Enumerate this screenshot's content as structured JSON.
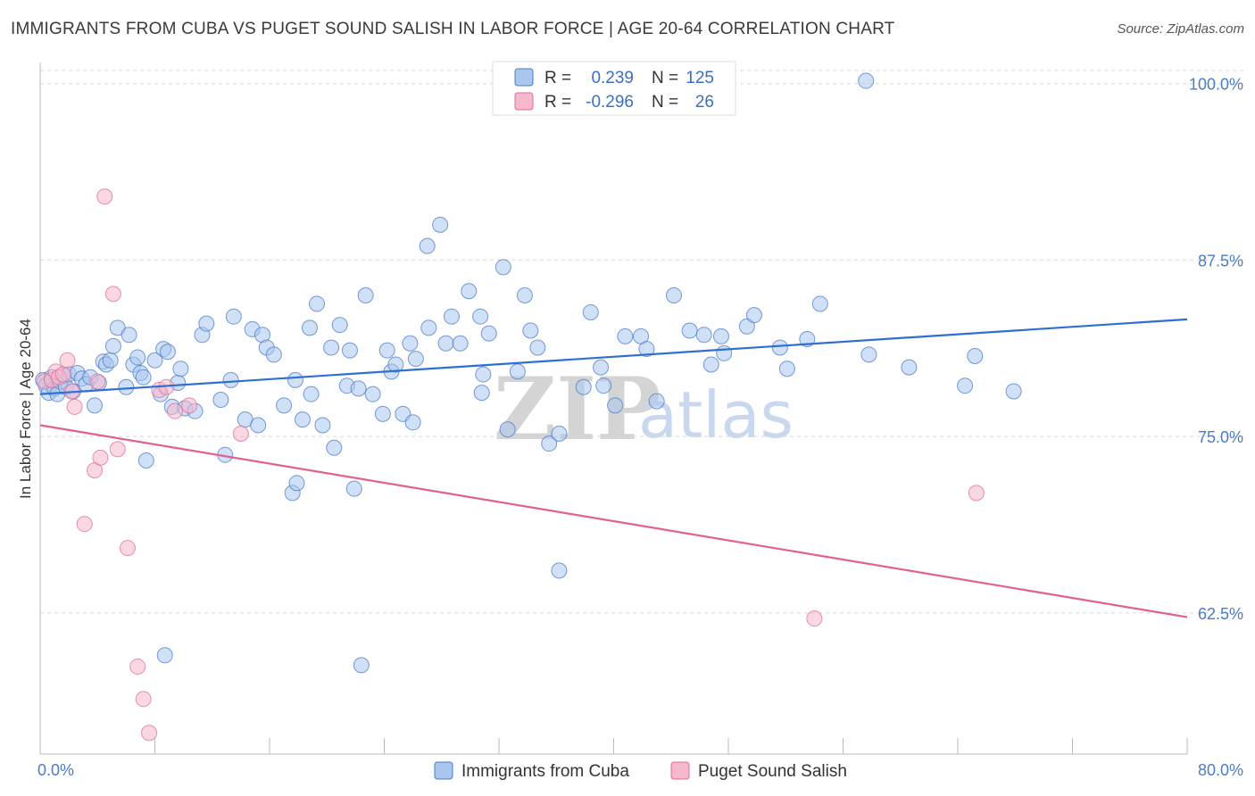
{
  "title": "IMMIGRANTS FROM CUBA VS PUGET SOUND SALISH IN LABOR FORCE | AGE 20-64 CORRELATION CHART",
  "source": "Source: ZipAtlas.com",
  "watermark": {
    "zip": "ZIP",
    "atlas": "atlas"
  },
  "colors": {
    "blue": "#4a7cc7",
    "blue_fill": "#a9c6ee",
    "blue_line": "#2f6fd1",
    "pink": "#e06c97",
    "pink_fill": "#f6b8cc",
    "pink_line": "#e0608f",
    "grid": "#d8d8d8",
    "axis": "#bbbbbb"
  },
  "legend": {
    "rows": [
      {
        "r_label": "R =",
        "r_value": "0.239",
        "n_label": "N =",
        "n_value": "125"
      },
      {
        "r_label": "R =",
        "r_value": "-0.296",
        "n_label": "N =",
        "n_value": "26"
      }
    ]
  },
  "bottom_legend": [
    "Immigrants from Cuba",
    "Puget Sound Salish"
  ],
  "chart_data": {
    "type": "scatter",
    "ylabel": "In Labor Force | Age 20-64",
    "xlim": [
      0,
      80
    ],
    "ylim": [
      52.5,
      101.5
    ],
    "x_tick_labels": [
      "0.0%",
      "80.0%"
    ],
    "y_ticks": [
      100.0,
      87.5,
      75.0,
      62.5
    ],
    "y_tick_labels": [
      "100.0%",
      "87.5%",
      "75.0%",
      "62.5%"
    ],
    "grid": "horizontal dashed",
    "legend_position": "top-center",
    "series": [
      {
        "name": "Immigrants from Cuba",
        "color": "#4a7cc7",
        "trend": {
          "x0": 0,
          "y0": 78.0,
          "x1": 80,
          "y1": 83.3
        },
        "points": [
          [
            0.2,
            79.0
          ],
          [
            0.4,
            78.6
          ],
          [
            0.6,
            78.1
          ],
          [
            0.8,
            79.2
          ],
          [
            1.0,
            78.4
          ],
          [
            1.2,
            78.0
          ],
          [
            1.4,
            78.9
          ],
          [
            1.7,
            79.3
          ],
          [
            1.8,
            78.5
          ],
          [
            2.0,
            79.4
          ],
          [
            2.3,
            78.2
          ],
          [
            2.6,
            79.5
          ],
          [
            2.9,
            79.1
          ],
          [
            3.2,
            78.7
          ],
          [
            3.5,
            79.2
          ],
          [
            3.8,
            77.2
          ],
          [
            4.1,
            78.8
          ],
          [
            4.4,
            80.3
          ],
          [
            4.6,
            80.1
          ],
          [
            4.9,
            80.4
          ],
          [
            5.1,
            81.4
          ],
          [
            5.4,
            82.7
          ],
          [
            6.0,
            78.5
          ],
          [
            6.2,
            82.2
          ],
          [
            6.5,
            80.1
          ],
          [
            6.8,
            80.6
          ],
          [
            7.0,
            79.5
          ],
          [
            7.2,
            79.2
          ],
          [
            7.4,
            73.3
          ],
          [
            8.0,
            80.4
          ],
          [
            8.4,
            78.0
          ],
          [
            8.6,
            81.2
          ],
          [
            8.9,
            81.0
          ],
          [
            9.2,
            77.1
          ],
          [
            9.6,
            78.8
          ],
          [
            9.8,
            79.8
          ],
          [
            10.1,
            77.0
          ],
          [
            10.8,
            76.8
          ],
          [
            11.3,
            82.2
          ],
          [
            11.6,
            83.0
          ],
          [
            12.6,
            77.6
          ],
          [
            12.9,
            73.7
          ],
          [
            13.3,
            79.0
          ],
          [
            13.5,
            83.5
          ],
          [
            14.3,
            76.2
          ],
          [
            14.8,
            82.6
          ],
          [
            15.2,
            75.8
          ],
          [
            15.5,
            82.2
          ],
          [
            15.8,
            81.3
          ],
          [
            16.3,
            80.8
          ],
          [
            17.0,
            77.2
          ],
          [
            17.6,
            71.0
          ],
          [
            17.9,
            71.7
          ],
          [
            17.8,
            79.0
          ],
          [
            18.3,
            76.2
          ],
          [
            18.8,
            82.7
          ],
          [
            18.9,
            78.0
          ],
          [
            19.3,
            84.4
          ],
          [
            19.7,
            75.8
          ],
          [
            20.3,
            81.3
          ],
          [
            20.5,
            74.2
          ],
          [
            20.9,
            82.9
          ],
          [
            21.4,
            78.6
          ],
          [
            21.9,
            71.3
          ],
          [
            21.6,
            81.1
          ],
          [
            22.2,
            78.4
          ],
          [
            22.7,
            85.0
          ],
          [
            23.2,
            78.0
          ],
          [
            23.9,
            76.6
          ],
          [
            24.2,
            81.1
          ],
          [
            24.5,
            79.6
          ],
          [
            24.8,
            80.1
          ],
          [
            25.3,
            76.6
          ],
          [
            25.8,
            81.6
          ],
          [
            26.2,
            80.5
          ],
          [
            26.0,
            76.0
          ],
          [
            27.0,
            88.5
          ],
          [
            27.9,
            90.0
          ],
          [
            27.1,
            82.7
          ],
          [
            28.3,
            81.6
          ],
          [
            28.7,
            83.5
          ],
          [
            29.3,
            81.6
          ],
          [
            29.9,
            85.3
          ],
          [
            30.7,
            83.5
          ],
          [
            30.9,
            79.4
          ],
          [
            30.8,
            78.1
          ],
          [
            31.3,
            82.3
          ],
          [
            32.3,
            87.0
          ],
          [
            32.6,
            75.5
          ],
          [
            33.8,
            85.0
          ],
          [
            33.3,
            79.6
          ],
          [
            34.2,
            82.5
          ],
          [
            34.7,
            81.3
          ],
          [
            35.5,
            74.5
          ],
          [
            36.2,
            75.2
          ],
          [
            36.2,
            65.5
          ],
          [
            37.9,
            78.5
          ],
          [
            38.4,
            83.8
          ],
          [
            39.1,
            79.9
          ],
          [
            39.3,
            78.6
          ],
          [
            40.1,
            77.2
          ],
          [
            40.8,
            82.1
          ],
          [
            41.9,
            82.1
          ],
          [
            42.3,
            81.2
          ],
          [
            43.0,
            77.5
          ],
          [
            44.2,
            85.0
          ],
          [
            45.3,
            82.5
          ],
          [
            46.3,
            82.2
          ],
          [
            46.8,
            80.1
          ],
          [
            47.5,
            82.1
          ],
          [
            47.7,
            80.9
          ],
          [
            49.3,
            82.8
          ],
          [
            49.8,
            83.6
          ],
          [
            51.6,
            81.3
          ],
          [
            52.1,
            79.8
          ],
          [
            53.5,
            81.9
          ],
          [
            54.4,
            84.4
          ],
          [
            57.6,
            100.2
          ],
          [
            57.8,
            80.8
          ],
          [
            60.6,
            79.9
          ],
          [
            64.5,
            78.6
          ],
          [
            65.2,
            80.7
          ],
          [
            67.9,
            78.2
          ],
          [
            8.7,
            59.5
          ],
          [
            22.4,
            58.8
          ]
        ]
      },
      {
        "name": "Puget Sound Salish",
        "color": "#e06c97",
        "trend": {
          "x0": 0,
          "y0": 75.8,
          "x1": 80,
          "y1": 62.2
        },
        "points": [
          [
            0.3,
            78.9
          ],
          [
            0.8,
            79.0
          ],
          [
            1.1,
            79.6
          ],
          [
            1.3,
            79.2
          ],
          [
            1.6,
            79.4
          ],
          [
            1.9,
            80.4
          ],
          [
            2.2,
            78.2
          ],
          [
            2.4,
            77.1
          ],
          [
            3.1,
            68.8
          ],
          [
            3.8,
            72.6
          ],
          [
            4.2,
            73.5
          ],
          [
            4.5,
            92.0
          ],
          [
            5.1,
            85.1
          ],
          [
            5.4,
            74.1
          ],
          [
            6.1,
            67.1
          ],
          [
            6.8,
            58.7
          ],
          [
            7.2,
            56.4
          ],
          [
            7.6,
            54.0
          ],
          [
            8.3,
            78.3
          ],
          [
            8.8,
            78.5
          ],
          [
            9.4,
            76.8
          ],
          [
            10.4,
            77.2
          ],
          [
            14.0,
            75.2
          ],
          [
            54.0,
            62.1
          ],
          [
            65.3,
            71.0
          ],
          [
            4.0,
            78.9
          ]
        ]
      }
    ]
  }
}
